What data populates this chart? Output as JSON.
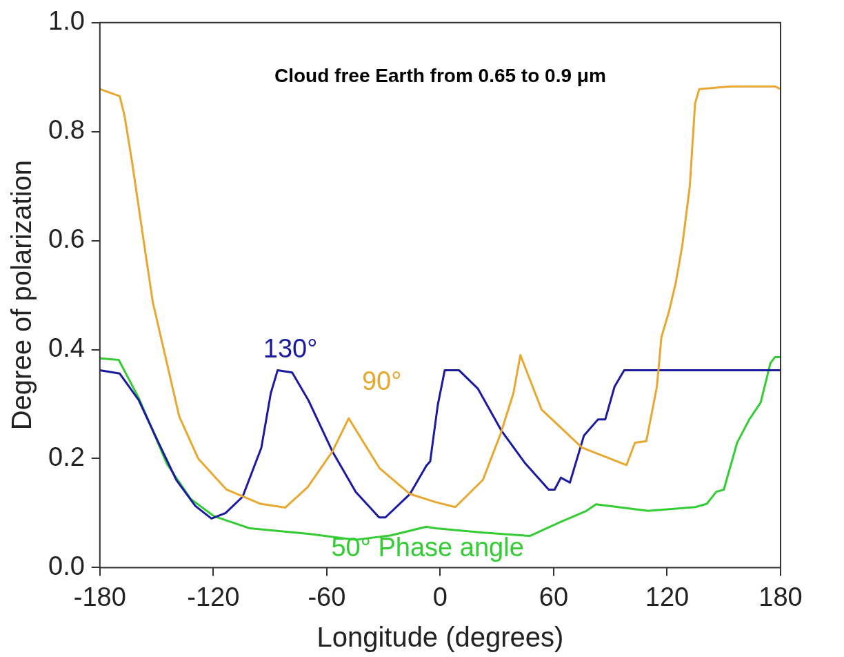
{
  "chart_data": {
    "type": "line",
    "title": "Cloud free Earth from 0.65 to 0.9 μm",
    "xlabel": "Longitude (degrees)",
    "ylabel": "Degree of polarization",
    "xlim": [
      -180,
      180
    ],
    "xticks": [
      -180,
      -120,
      -60,
      0,
      60,
      120,
      180
    ],
    "ylim": [
      0,
      1
    ],
    "yticks": [
      {
        "value": 0,
        "label": "0.0"
      },
      0.2,
      0.4,
      0.6,
      0.8,
      {
        "value": 1,
        "label": "1.0"
      }
    ],
    "grid": false,
    "legend": false,
    "marker": "none",
    "line_style": "solid",
    "series": [
      {
        "name": "90°",
        "color": "#e8a830",
        "x": [
          -180,
          -169.5,
          -167,
          -163,
          -159.4,
          -155.7,
          -152,
          -148,
          -138,
          -128,
          -113,
          -95,
          -82,
          -70,
          -57,
          -48.4,
          -32,
          -16,
          -2.4,
          8,
          22.6,
          32,
          38.7,
          42.4,
          53.6,
          75,
          98.5,
          103,
          109,
          114.6,
          117,
          121,
          124.6,
          128,
          132,
          134.8,
          137,
          153.5,
          177,
          180
        ],
        "values": [
          0.878,
          0.865,
          0.83,
          0.745,
          0.66,
          0.573,
          0.487,
          0.427,
          0.277,
          0.2,
          0.143,
          0.117,
          0.11,
          0.148,
          0.213,
          0.274,
          0.182,
          0.135,
          0.12,
          0.111,
          0.161,
          0.246,
          0.32,
          0.39,
          0.29,
          0.22,
          0.188,
          0.229,
          0.232,
          0.332,
          0.423,
          0.47,
          0.523,
          0.59,
          0.7,
          0.852,
          0.878,
          0.883,
          0.883,
          0.878
        ]
      },
      {
        "name": "130°",
        "color": "#1a1aa0",
        "x": [
          -180,
          -169.5,
          -159.4,
          -149.5,
          -139.6,
          -129.5,
          -121,
          -113.5,
          -104.5,
          -94.6,
          -89.6,
          -86,
          -78.3,
          -69.7,
          -57,
          -44.7,
          -32.3,
          -29,
          -16,
          -7.3,
          -5.3,
          -1.3,
          2.4,
          10,
          20,
          32.4,
          45,
          57.4,
          60.5,
          63.8,
          68.6,
          76,
          83.5,
          87.3,
          92.2,
          97.3,
          180
        ],
        "values": [
          0.362,
          0.356,
          0.307,
          0.233,
          0.161,
          0.113,
          0.09,
          0.1,
          0.13,
          0.22,
          0.32,
          0.362,
          0.358,
          0.307,
          0.213,
          0.139,
          0.092,
          0.092,
          0.135,
          0.187,
          0.195,
          0.298,
          0.362,
          0.362,
          0.328,
          0.251,
          0.191,
          0.143,
          0.143,
          0.165,
          0.156,
          0.242,
          0.272,
          0.272,
          0.332,
          0.362,
          0.362
        ]
      },
      {
        "name": "50° Phase angle",
        "color": "#33cc33",
        "x": [
          -180,
          -170,
          -159.4,
          -144.5,
          -132,
          -119.5,
          -100.7,
          -69.7,
          -44.7,
          -26,
          -7.3,
          -2.4,
          22.6,
          47.4,
          63.8,
          77.3,
          82.4,
          110,
          135,
          141,
          146,
          150,
          157,
          163.5,
          169.5,
          174.6,
          177,
          180
        ],
        "values": [
          0.384,
          0.381,
          0.311,
          0.19,
          0.126,
          0.094,
          0.072,
          0.062,
          0.051,
          0.059,
          0.075,
          0.072,
          0.064,
          0.058,
          0.084,
          0.104,
          0.116,
          0.104,
          0.111,
          0.117,
          0.139,
          0.143,
          0.229,
          0.272,
          0.303,
          0.375,
          0.386,
          0.386
        ]
      }
    ]
  }
}
